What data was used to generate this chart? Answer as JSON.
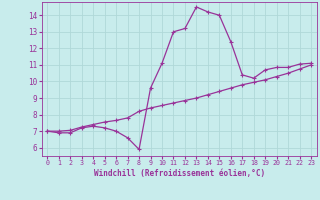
{
  "xlabel": "Windchill (Refroidissement éolien,°C)",
  "background_color": "#c8ecec",
  "line_color": "#993399",
  "grid_color": "#b0d8d8",
  "xlim": [
    -0.5,
    23.5
  ],
  "ylim": [
    5.5,
    14.8
  ],
  "xticks": [
    0,
    1,
    2,
    3,
    4,
    5,
    6,
    7,
    8,
    9,
    10,
    11,
    12,
    13,
    14,
    15,
    16,
    17,
    18,
    19,
    20,
    21,
    22,
    23
  ],
  "yticks": [
    6,
    7,
    8,
    9,
    10,
    11,
    12,
    13,
    14
  ],
  "curve1_x": [
    0,
    1,
    2,
    3,
    4,
    5,
    6,
    7,
    8,
    9,
    10,
    11,
    12,
    13,
    14,
    15,
    16,
    17,
    18,
    19,
    20,
    21,
    22,
    23
  ],
  "curve1_y": [
    7.0,
    6.9,
    6.9,
    7.2,
    7.3,
    7.2,
    7.0,
    6.6,
    5.9,
    9.6,
    11.1,
    13.0,
    13.2,
    14.5,
    14.2,
    14.0,
    12.4,
    10.4,
    10.2,
    10.7,
    10.85,
    10.85,
    11.05,
    11.1
  ],
  "curve2_x": [
    0,
    1,
    2,
    3,
    4,
    5,
    6,
    7,
    8,
    9,
    10,
    11,
    12,
    13,
    14,
    15,
    16,
    17,
    18,
    19,
    20,
    21,
    22,
    23
  ],
  "curve2_y": [
    7.0,
    7.0,
    7.05,
    7.25,
    7.4,
    7.55,
    7.65,
    7.8,
    8.2,
    8.4,
    8.55,
    8.7,
    8.85,
    9.0,
    9.2,
    9.4,
    9.6,
    9.8,
    9.95,
    10.1,
    10.3,
    10.5,
    10.75,
    11.0
  ]
}
